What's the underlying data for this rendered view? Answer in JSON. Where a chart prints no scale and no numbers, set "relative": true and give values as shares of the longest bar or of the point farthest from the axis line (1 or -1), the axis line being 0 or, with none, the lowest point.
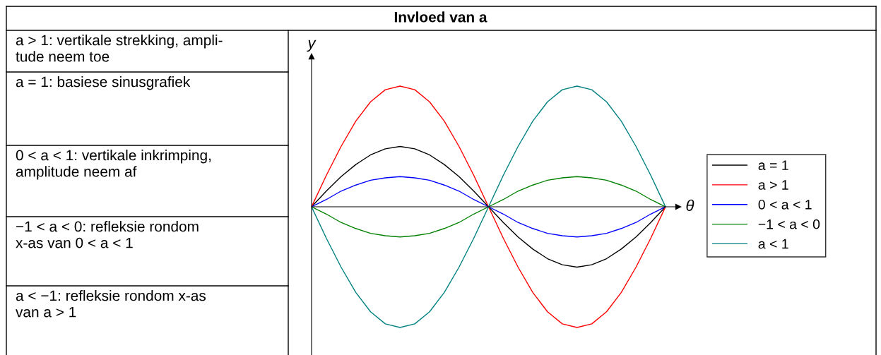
{
  "chart_data": {
    "type": "line",
    "title": "Invloed van a",
    "xlabel": "θ",
    "ylabel": "y",
    "relative": true,
    "categories": [
      null,
      null,
      null,
      null,
      null,
      null,
      null,
      null,
      null,
      null,
      null,
      null,
      null,
      null,
      null,
      null,
      null,
      null,
      null,
      null,
      null,
      null,
      null,
      null,
      null
    ],
    "series": [
      {
        "name": "a = 1",
        "color": "#000000",
        "values": [
          0,
          0.13,
          0.25,
          0.35,
          0.43,
          0.48,
          0.5,
          0.48,
          0.43,
          0.35,
          0.25,
          0.13,
          0,
          -0.13,
          -0.25,
          -0.35,
          -0.43,
          -0.48,
          -0.5,
          -0.48,
          -0.43,
          -0.35,
          -0.25,
          -0.13,
          0
        ]
      },
      {
        "name": "a > 1",
        "color": "#ff0000",
        "values": [
          0,
          0.26,
          0.5,
          0.71,
          0.87,
          0.97,
          1,
          0.97,
          0.87,
          0.71,
          0.5,
          0.26,
          0,
          -0.26,
          -0.5,
          -0.71,
          -0.87,
          -0.97,
          -1,
          -0.97,
          -0.87,
          -0.71,
          -0.5,
          -0.26,
          0
        ]
      },
      {
        "name": "0 < a < 1",
        "color": "#0000ff",
        "values": [
          0,
          0.06,
          0.13,
          0.18,
          0.22,
          0.24,
          0.25,
          0.24,
          0.22,
          0.18,
          0.13,
          0.06,
          0,
          -0.06,
          -0.13,
          -0.18,
          -0.22,
          -0.24,
          -0.25,
          -0.24,
          -0.22,
          -0.18,
          -0.13,
          -0.06,
          0
        ]
      },
      {
        "name": "−1 < a < 0",
        "color": "#008000",
        "values": [
          0,
          -0.06,
          -0.13,
          -0.18,
          -0.22,
          -0.24,
          -0.25,
          -0.24,
          -0.22,
          -0.18,
          -0.13,
          -0.06,
          0,
          0.06,
          0.13,
          0.18,
          0.22,
          0.24,
          0.25,
          0.24,
          0.22,
          0.18,
          0.13,
          0.06,
          0
        ]
      },
      {
        "name": "a < 1",
        "color": "#008080",
        "values": [
          0,
          -0.26,
          -0.5,
          -0.71,
          -0.87,
          -0.97,
          -1,
          -0.97,
          -0.87,
          -0.71,
          -0.5,
          -0.26,
          0,
          0.26,
          0.5,
          0.71,
          0.87,
          0.97,
          1,
          0.97,
          0.87,
          0.71,
          0.5,
          0.26,
          0
        ]
      }
    ],
    "legend": "right",
    "marker": "none",
    "line_style": "solid",
    "annotations": [
      "a > 1: vertikale strekking, ampli-\ntude neem toe",
      "a = 1: basiese sinusgrafiek",
      "0 < a < 1: vertikale inkrimping,\namplitude neem af",
      "−1 < a < 0: refleksie rondom\nx-as van 0 < a < 1",
      "a < −1: refleksie rondom x-as\nvan a > 1"
    ]
  }
}
